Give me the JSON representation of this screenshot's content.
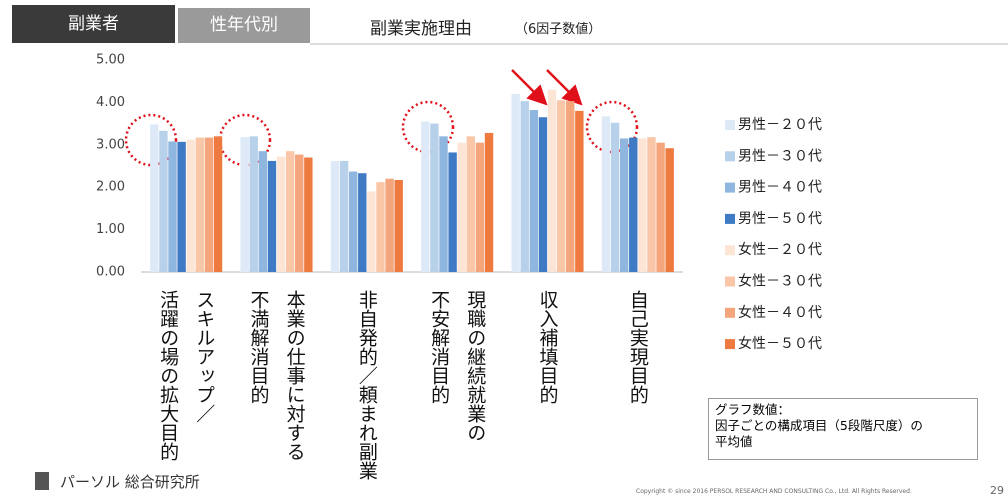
{
  "header": {
    "tabs": [
      "副業者",
      "性年代別"
    ],
    "title": "副業実施理由",
    "subtitle": "（6因子数値）"
  },
  "chart_data": {
    "type": "bar",
    "categories": [
      "スキルアップ／\n活躍の場の拡大目的",
      "本業の仕事に対する\n不満解消目的",
      "非自発的／頼まれ副業",
      "現職の継続就業の\n不安解消目的",
      "収入補填目的",
      "自己実現目的"
    ],
    "series": [
      {
        "name": "男性－２０代",
        "color": "#dde9f6",
        "values": [
          3.48,
          3.18,
          2.62,
          3.55,
          4.2,
          3.67
        ]
      },
      {
        "name": "男性－３０代",
        "color": "#b8d1eb",
        "values": [
          3.33,
          3.2,
          2.62,
          3.5,
          4.03,
          3.52
        ]
      },
      {
        "name": "男性－４０代",
        "color": "#8fb6df",
        "values": [
          3.08,
          2.85,
          2.37,
          3.2,
          3.82,
          3.15
        ]
      },
      {
        "name": "男性－５０代",
        "color": "#3f7bc4",
        "values": [
          3.07,
          2.62,
          2.33,
          2.82,
          3.65,
          3.17
        ]
      },
      {
        "name": "女性－２０代",
        "color": "#fde5d6",
        "values": [
          3.12,
          2.72,
          1.9,
          3.05,
          4.3,
          3.15
        ]
      },
      {
        "name": "女性－３０代",
        "color": "#f9c6a8",
        "values": [
          3.17,
          2.85,
          2.12,
          3.2,
          4.05,
          3.18
        ]
      },
      {
        "name": "女性－４０代",
        "color": "#f4a57c",
        "values": [
          3.17,
          2.77,
          2.2,
          3.05,
          4.03,
          3.05
        ]
      },
      {
        "name": "女性－５０代",
        "color": "#ee7a3f",
        "values": [
          3.2,
          2.7,
          2.17,
          3.28,
          3.8,
          2.92
        ]
      }
    ],
    "ylim": [
      0,
      5
    ],
    "yticks": [
      {
        "value": 0,
        "label": "0.00"
      },
      {
        "value": 1,
        "label": "1.00"
      },
      {
        "value": 2,
        "label": "2.00"
      },
      {
        "value": 3,
        "label": "3.00"
      },
      {
        "value": 4,
        "label": "4.00"
      },
      {
        "value": 5,
        "label": "5.00"
      }
    ],
    "grid": false,
    "legend": "right"
  },
  "note": [
    "グラフ数値：",
    "因子ごとの構成項目（5段階尺度）の",
    "平均値"
  ],
  "footer": {
    "logo": "パーソル 総合研究所",
    "copyright": "Copyright © since 2016 PERSOL RESEARCH AND CONSULTING Co., Ltd. All Rights Reserved.",
    "page": "29"
  }
}
